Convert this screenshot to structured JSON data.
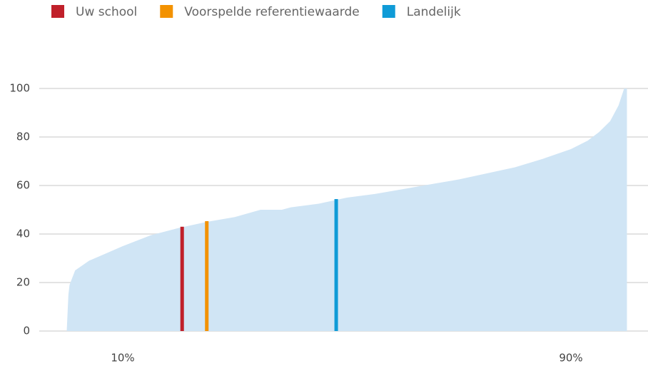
{
  "chart_data": {
    "type": "area",
    "distribution": {
      "color": "#d0e5f5",
      "x": [
        0,
        0.3,
        0.5,
        1.5,
        4,
        7,
        10,
        15,
        20,
        25,
        30,
        34.6,
        38.4,
        40,
        45,
        50,
        55,
        60,
        65,
        70,
        75,
        78,
        80,
        85,
        90,
        93,
        95,
        97,
        98.5,
        99.5,
        100
      ],
      "values": [
        0,
        15,
        19,
        25,
        29,
        32,
        35,
        39.5,
        42.5,
        45,
        47,
        50,
        50,
        51,
        52.5,
        55,
        56.5,
        58.5,
        60.5,
        62.5,
        65,
        66.5,
        67.5,
        71,
        75,
        78.5,
        82,
        86.5,
        93,
        100,
        100
      ]
    },
    "markers": [
      {
        "name": "Uw school",
        "color": "#c0202a",
        "x": 20.6,
        "value": 43
      },
      {
        "name": "Voorspelde referentiewaarde",
        "color": "#f39200",
        "x": 25,
        "value": 45.3
      },
      {
        "name": "Landelijk",
        "color": "#0f9bd7",
        "x": 48.1,
        "value": 54.4
      }
    ],
    "xlim": [
      0,
      100
    ],
    "xticks": [
      {
        "value": 10,
        "label": "10%"
      },
      {
        "value": 90,
        "label": "90%"
      }
    ],
    "ylim": [
      0,
      100
    ],
    "yticks": [
      0,
      20,
      40,
      60,
      80,
      100
    ],
    "grid": true
  }
}
